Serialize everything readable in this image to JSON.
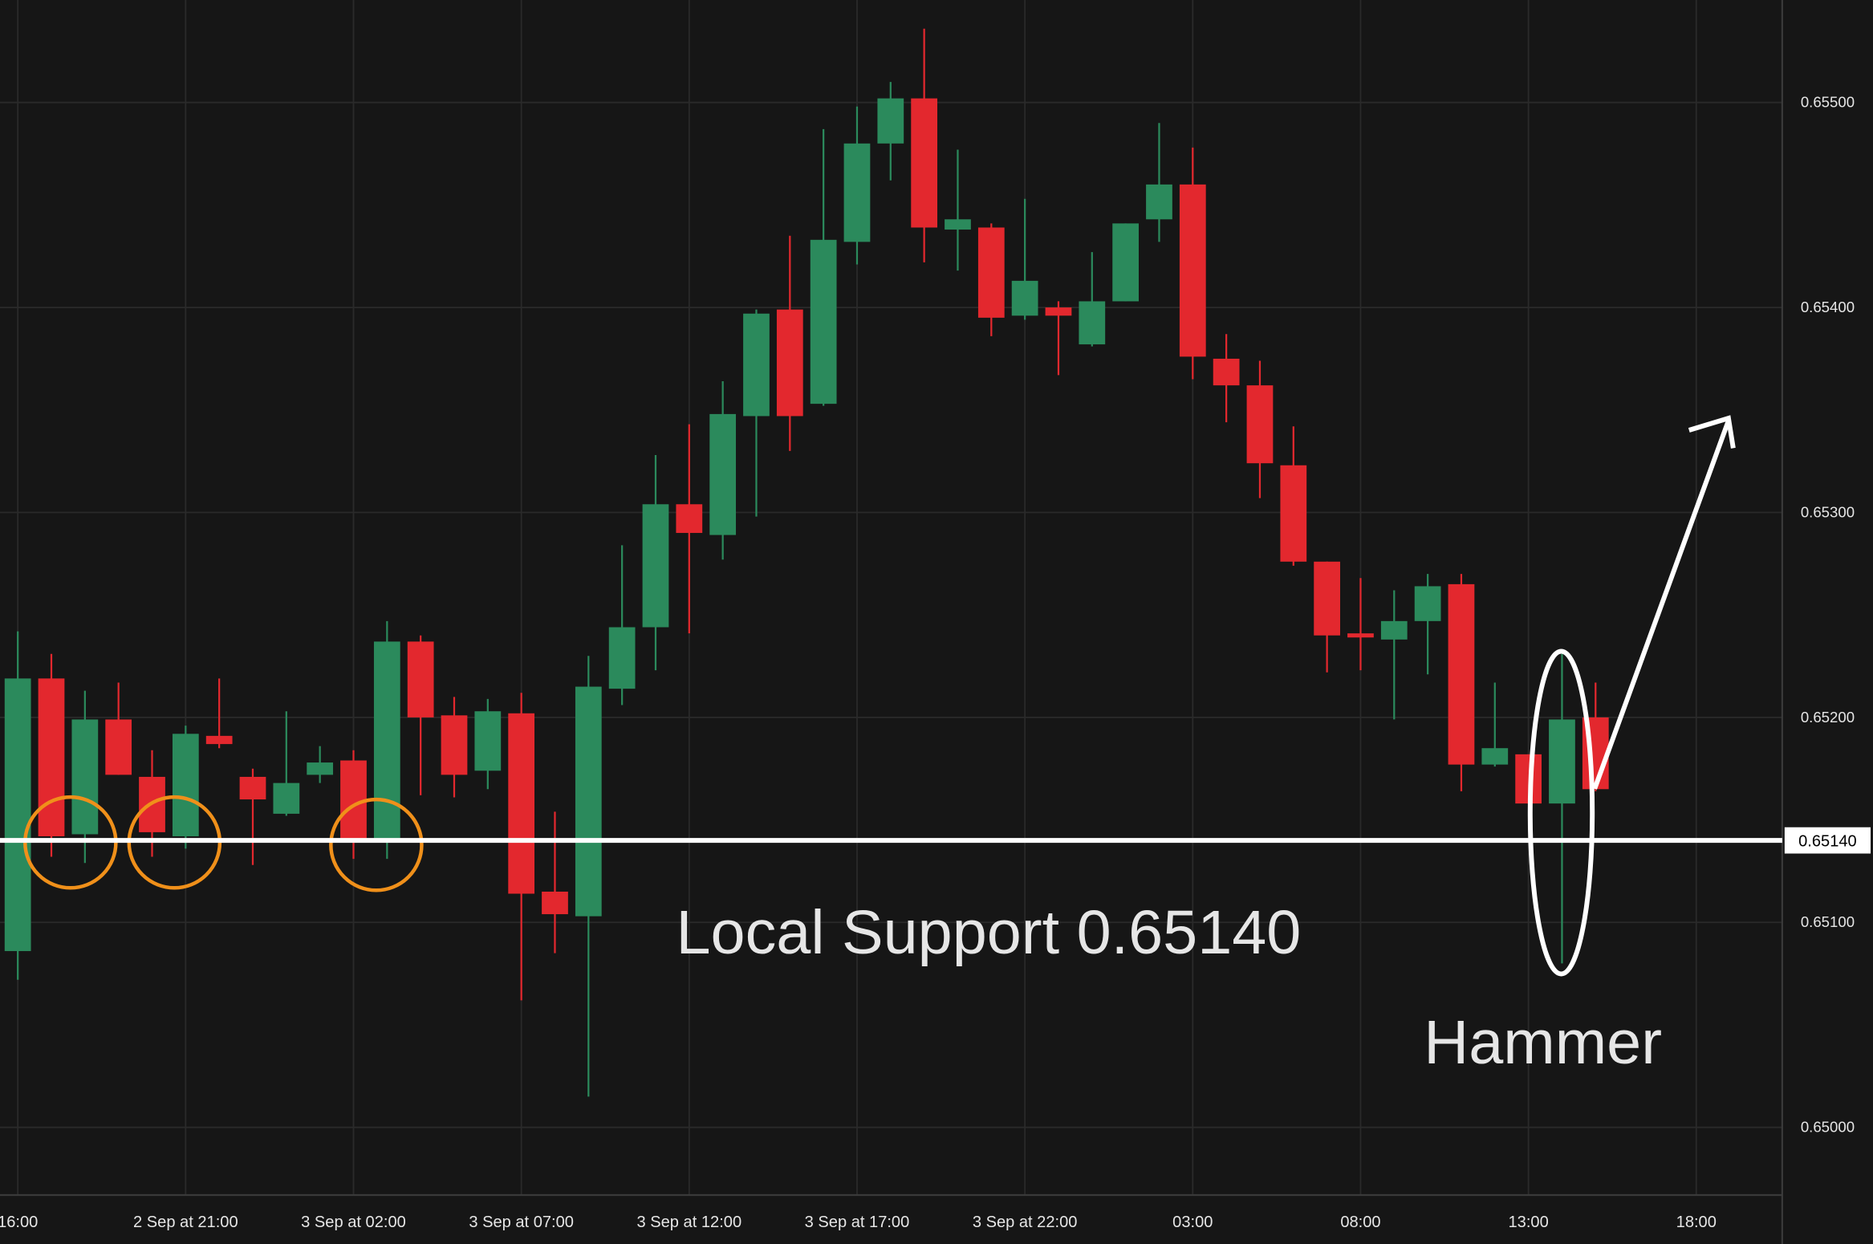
{
  "chart_data": {
    "type": "candlestick",
    "x": [
      0,
      1,
      2,
      3,
      4,
      5,
      6,
      7,
      8,
      9,
      10,
      11,
      12,
      13,
      14,
      15,
      16,
      17,
      18,
      19,
      20,
      21,
      22,
      23,
      24,
      25,
      26,
      27,
      28,
      29,
      30,
      31,
      32,
      33,
      34,
      35,
      36,
      37,
      38,
      39,
      40,
      41,
      42,
      43,
      44,
      45,
      46,
      47
    ],
    "open": [
      0.65086,
      0.65219,
      0.65143,
      0.65199,
      0.65171,
      0.65142,
      0.65191,
      0.65171,
      0.65153,
      0.65172,
      0.65179,
      0.65141,
      0.65237,
      0.65201,
      0.65174,
      0.65202,
      0.65115,
      0.65103,
      0.65214,
      0.65244,
      0.65304,
      0.65289,
      0.65347,
      0.65399,
      0.65353,
      0.65432,
      0.6548,
      0.65502,
      0.65438,
      0.65439,
      0.65396,
      0.654,
      0.65382,
      0.65403,
      0.65443,
      0.6546,
      0.65375,
      0.65362,
      0.65323,
      0.65276,
      0.65241,
      0.65238,
      0.65247,
      0.65265,
      0.65177,
      0.65182,
      0.65158,
      0.652
    ],
    "high": [
      0.65242,
      0.65231,
      0.65213,
      0.65217,
      0.65184,
      0.65196,
      0.65219,
      0.65175,
      0.65203,
      0.65186,
      0.65184,
      0.65247,
      0.6524,
      0.6521,
      0.65209,
      0.65212,
      0.65154,
      0.6523,
      0.65284,
      0.65328,
      0.65343,
      0.65364,
      0.65399,
      0.65435,
      0.65487,
      0.65498,
      0.6551,
      0.65536,
      0.65477,
      0.65441,
      0.65453,
      0.65403,
      0.65427,
      0.65441,
      0.6549,
      0.65478,
      0.65387,
      0.65374,
      0.65342,
      0.65276,
      0.65268,
      0.65262,
      0.6527,
      0.6527,
      0.65217,
      0.65182,
      0.65231,
      0.65217
    ],
    "low": [
      0.65072,
      0.65132,
      0.65129,
      0.65172,
      0.65132,
      0.65136,
      0.65185,
      0.65128,
      0.65152,
      0.65168,
      0.65131,
      0.65131,
      0.65162,
      0.65161,
      0.65165,
      0.65062,
      0.65085,
      0.65015,
      0.65206,
      0.65223,
      0.65241,
      0.65277,
      0.65298,
      0.6533,
      0.65352,
      0.65421,
      0.65462,
      0.65422,
      0.65418,
      0.65386,
      0.65394,
      0.65367,
      0.65381,
      0.65403,
      0.65432,
      0.65365,
      0.65344,
      0.65307,
      0.65274,
      0.65222,
      0.65223,
      0.65199,
      0.65221,
      0.65164,
      0.65176,
      0.65158,
      0.6508,
      0.65164
    ],
    "close": [
      0.65219,
      0.65142,
      0.65199,
      0.65172,
      0.65144,
      0.65192,
      0.65187,
      0.6516,
      0.65168,
      0.65178,
      0.65141,
      0.65237,
      0.652,
      0.65172,
      0.65203,
      0.65114,
      0.65104,
      0.65215,
      0.65244,
      0.65304,
      0.6529,
      0.65348,
      0.65397,
      0.65347,
      0.65433,
      0.6548,
      0.65502,
      0.65439,
      0.65443,
      0.65395,
      0.65413,
      0.65396,
      0.65403,
      0.65441,
      0.6546,
      0.65376,
      0.65362,
      0.65324,
      0.65276,
      0.6524,
      0.65239,
      0.65247,
      0.65264,
      0.65177,
      0.65185,
      0.65158,
      0.65199,
      0.65165
    ],
    "up_color": "#2b8a5c",
    "down_color": "#e3282e",
    "xlim": [
      -0.53,
      52.56
    ],
    "xticks": [
      {
        "value": 0,
        "label": "16:00"
      },
      {
        "value": 5,
        "label": "2 Sep at 21:00"
      },
      {
        "value": 10,
        "label": "3 Sep at 02:00"
      },
      {
        "value": 15,
        "label": "3 Sep at 07:00"
      },
      {
        "value": 20,
        "label": "3 Sep at 12:00"
      },
      {
        "value": 25,
        "label": "3 Sep at 17:00"
      },
      {
        "value": 30,
        "label": "3 Sep at 22:00"
      },
      {
        "value": 35,
        "label": "03:00"
      },
      {
        "value": 40,
        "label": "08:00"
      },
      {
        "value": 45,
        "label": "13:00"
      },
      {
        "value": 50,
        "label": "18:00"
      }
    ],
    "ylim": [
      0.64967,
      0.6555
    ],
    "yticks": [
      {
        "value": 0.65,
        "label": "0.65000"
      },
      {
        "value": 0.651,
        "label": "0.65100"
      },
      {
        "value": 0.652,
        "label": "0.65200"
      },
      {
        "value": 0.653,
        "label": "0.65300"
      },
      {
        "value": 0.654,
        "label": "0.65400"
      },
      {
        "value": 0.655,
        "label": "0.65500"
      }
    ],
    "grid": true,
    "support_line": {
      "value": 0.6514,
      "label": "0.65140"
    },
    "annotations": [
      "Local Support 0.65140",
      "Hammer"
    ]
  }
}
